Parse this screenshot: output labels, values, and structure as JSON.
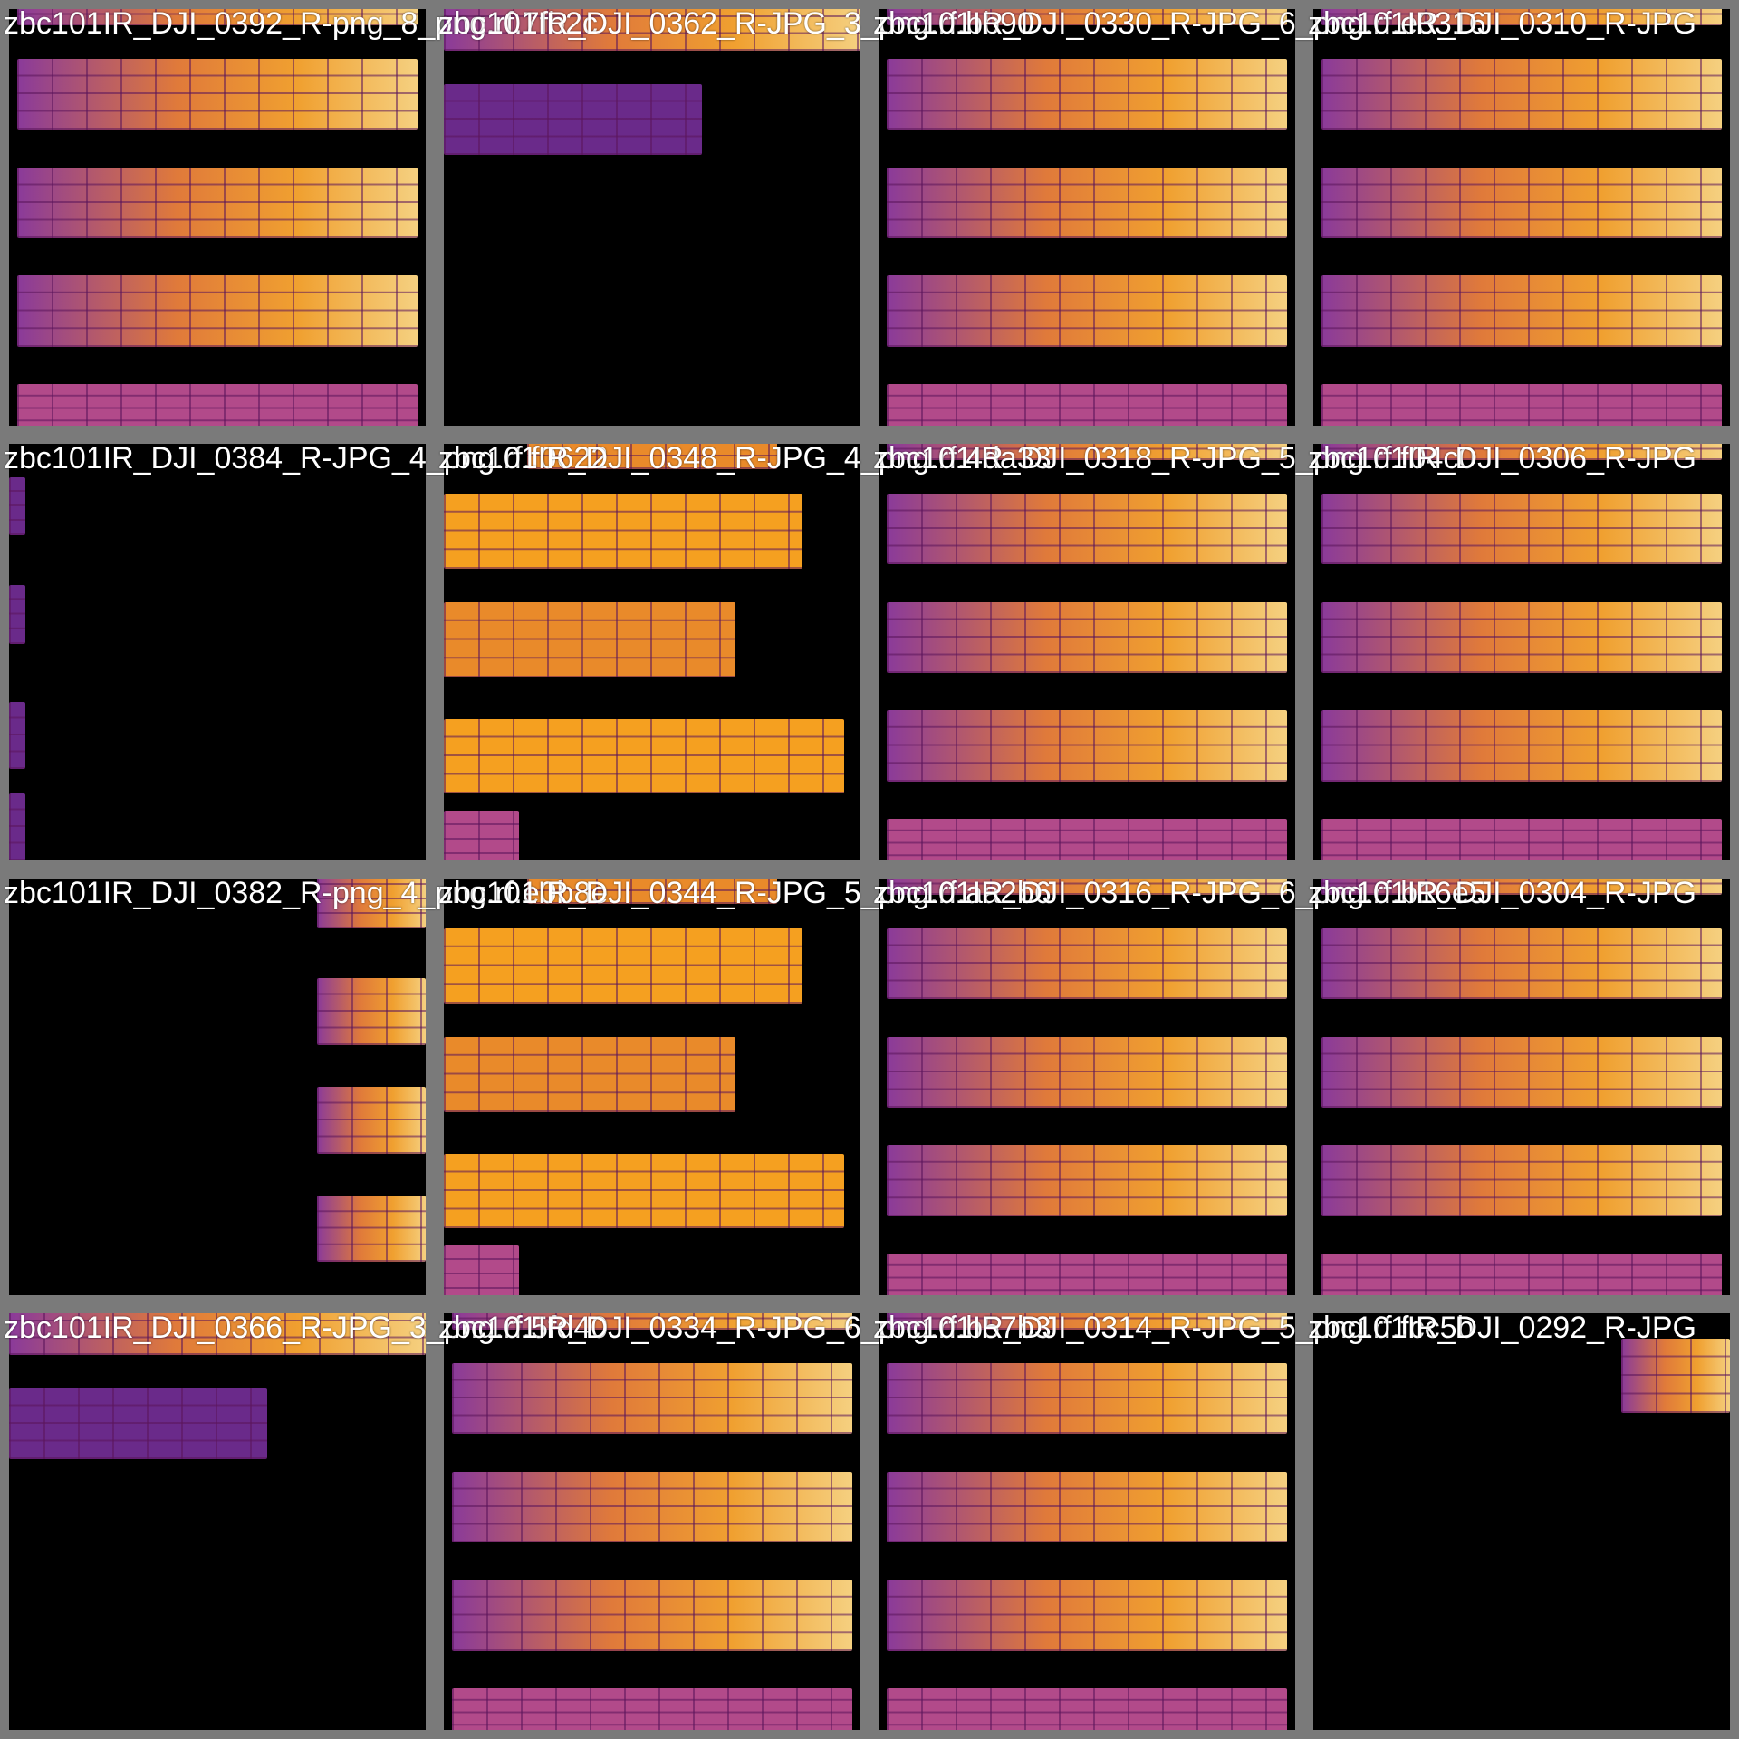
{
  "tiles": [
    {
      "label": "zbc101IR_DJI_0392_R-png_8_png.rf.7fb2c",
      "variant": "rows-full"
    },
    {
      "label": "zbc101IR_DJI_0362_R-JPG_3_png.rf.bb90",
      "variant": "rows-top"
    },
    {
      "label": "zbc101IR_DJI_0330_R-JPG_6_png.rf.e3316",
      "variant": "rows-full"
    },
    {
      "label": "zbc101IR_DJI_0310_R-JPG",
      "variant": "rows-full"
    },
    {
      "label": "zbc101IR_DJI_0384_R-JPG_4_png.rf.f0622",
      "variant": "edge-left"
    },
    {
      "label": "zbc101IR_DJI_0348_R-JPG_4_png.rf.4da33",
      "variant": "rows-bright"
    },
    {
      "label": "zbc101IR_DJI_0318_R-JPG_5_png.rf.f04c0",
      "variant": "rows-full"
    },
    {
      "label": "zbc101IR_DJI_0306_R-JPG",
      "variant": "rows-full"
    },
    {
      "label": "zbc101IR_DJI_0382_R-png_4_png.rf.e0b8e",
      "variant": "edge-right"
    },
    {
      "label": "zbc101IR_DJI_0344_R-JPG_5_png.rf.aa2b6",
      "variant": "rows-bright"
    },
    {
      "label": "zbc101IR_DJI_0316_R-JPG_6_png.rf.b16e5",
      "variant": "rows-full"
    },
    {
      "label": "zbc101IR_DJI_0304_R-JPG",
      "variant": "rows-full"
    },
    {
      "label": "zbc101IR_DJI_0366_R-JPG_3_png.rf.5fd40",
      "variant": "rows-top"
    },
    {
      "label": "zbc101IR_DJI_0334_R-JPG_6_png.rf.b57b3",
      "variant": "rows-full"
    },
    {
      "label": "zbc101IR_DJI_0314_R-JPG_5_png.rf.fcc5b",
      "variant": "rows-full"
    },
    {
      "label": "zbc101IR_DJI_0292_R-JPG",
      "variant": "corner"
    }
  ]
}
